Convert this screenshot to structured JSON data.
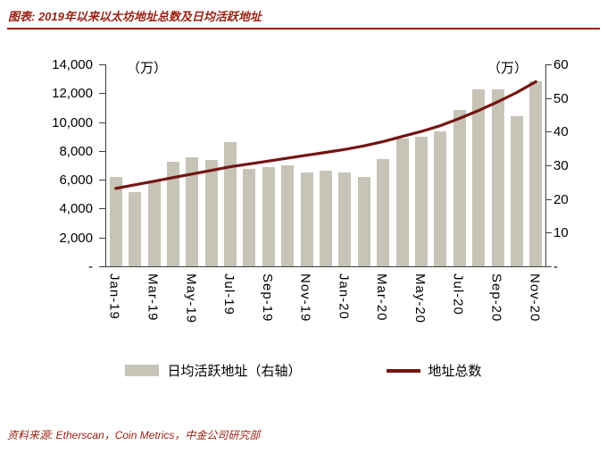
{
  "header": {
    "title": "图表: 2019年以来以太坊地址总数及日均活跃地址"
  },
  "footer": {
    "source": "资料来源: Etherscan，Coin Metrics，中金公司研究部"
  },
  "colors": {
    "accent_red": "#992114",
    "line_red": "#731512",
    "bar_fill": "#C7C3B7",
    "axis_gray": "#404040"
  },
  "chart_data": {
    "type": "bar",
    "subtype": "bar+line combo, dual axis",
    "title": "2019年以来以太坊地址总数及日均活跃地址",
    "categories": [
      "Jan-19",
      "Feb-19",
      "Mar-19",
      "Apr-19",
      "May-19",
      "Jun-19",
      "Jul-19",
      "Aug-19",
      "Sep-19",
      "Oct-19",
      "Nov-19",
      "Dec-19",
      "Jan-20",
      "Feb-20",
      "Mar-20",
      "Apr-20",
      "May-20",
      "Jun-20",
      "Jul-20",
      "Aug-20",
      "Sep-20",
      "Oct-20",
      "Nov-20"
    ],
    "x_tick_labels": [
      "Jan-19",
      "Mar-19",
      "May-19",
      "Jul-19",
      "Sep-19",
      "Nov-19",
      "Jan-20",
      "Mar-20",
      "May-20",
      "Jul-20",
      "Sep-20",
      "Nov-20"
    ],
    "x_tick_step": 2,
    "left_axis": {
      "title": "（万）",
      "min": 0,
      "max": 14000,
      "step": 2000,
      "tick_labels": [
        "14,000",
        "12,000",
        "10,000",
        "8,000",
        "6,000",
        "4,000",
        "2,000",
        "-"
      ]
    },
    "right_axis": {
      "title": "（万）",
      "min": 0,
      "max": 60,
      "step": 10,
      "tick_labels": [
        "60",
        "50",
        "40",
        "30",
        "20",
        "10",
        "-"
      ]
    },
    "series": [
      {
        "name": "日均活跃地址（右轴）",
        "type": "bar",
        "axis": "right",
        "values": [
          26.5,
          22,
          25.5,
          31,
          32.5,
          31.5,
          37,
          29,
          29.5,
          30,
          28,
          28.5,
          28,
          26.5,
          32,
          38,
          38.5,
          40,
          46.5,
          52.5,
          52.5,
          44.5,
          55
        ]
      },
      {
        "name": "地址总数",
        "type": "line",
        "axis": "left",
        "values": [
          5400,
          5650,
          5900,
          6150,
          6400,
          6650,
          6900,
          7100,
          7300,
          7500,
          7700,
          7900,
          8100,
          8350,
          8650,
          9000,
          9350,
          9750,
          10250,
          10800,
          11400,
          12050,
          12800
        ]
      }
    ],
    "grid": false,
    "legend_position": "bottom"
  }
}
